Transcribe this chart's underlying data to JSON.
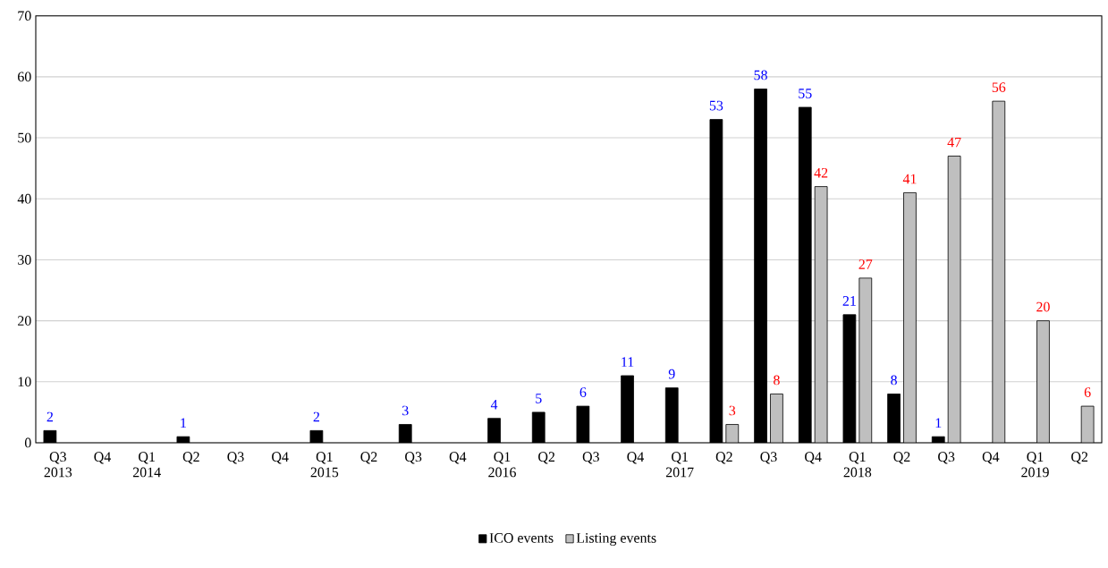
{
  "chart_data": {
    "type": "bar",
    "categories": [
      "Q3 2013",
      "Q4",
      "Q1 2014",
      "Q2",
      "Q3",
      "Q4",
      "Q1 2015",
      "Q2",
      "Q3",
      "Q4",
      "Q1 2016",
      "Q2",
      "Q3",
      "Q4",
      "Q1 2017",
      "Q2",
      "Q3",
      "Q4",
      "Q1 2018",
      "Q2",
      "Q3",
      "Q4",
      "Q1 2019",
      "Q2"
    ],
    "series": [
      {
        "name": "ICO events",
        "color": "#000000",
        "values": [
          2,
          null,
          null,
          1,
          null,
          null,
          2,
          null,
          3,
          null,
          4,
          5,
          6,
          11,
          9,
          53,
          58,
          55,
          21,
          8,
          1,
          null,
          null,
          null
        ]
      },
      {
        "name": "Listing events",
        "color": "#bfbfbf",
        "values": [
          null,
          null,
          null,
          null,
          null,
          null,
          null,
          null,
          null,
          null,
          null,
          null,
          null,
          null,
          null,
          3,
          8,
          42,
          27,
          41,
          47,
          56,
          20,
          6
        ]
      }
    ],
    "ylim": [
      0,
      70
    ],
    "yticks": [
      0,
      10,
      20,
      30,
      40,
      50,
      60,
      70
    ],
    "grid": "y",
    "legend": "bottom",
    "data_labels": true
  }
}
